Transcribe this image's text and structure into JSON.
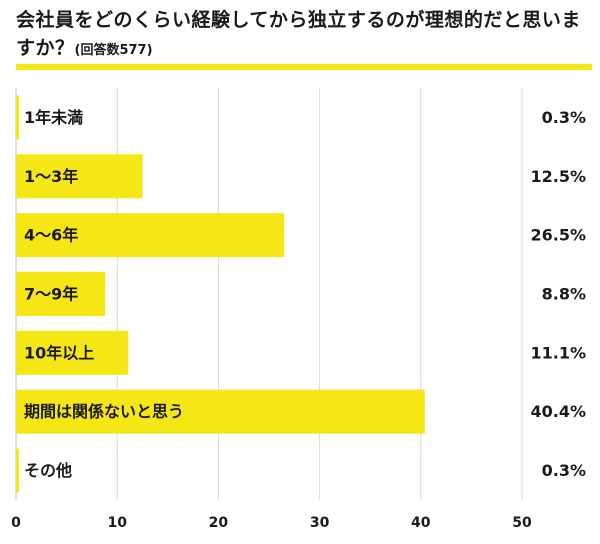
{
  "title": {
    "main": "会社員をどのくらい経験してから独立するのが理想的だと思いますか？",
    "sub": "(回答数577)"
  },
  "colors": {
    "bar": "#f5e716",
    "grid": "#d9d9d9",
    "text": "#1a1a1a"
  },
  "chart_data": {
    "type": "bar",
    "orientation": "horizontal",
    "categories": [
      "1年未満",
      "1〜3年",
      "4〜6年",
      "7〜9年",
      "10年以上",
      "期間は関係ないと思う",
      "その他"
    ],
    "values": [
      0.3,
      12.5,
      26.5,
      8.8,
      11.1,
      40.4,
      0.3
    ],
    "value_labels": [
      "0.3%",
      "12.5%",
      "26.5%",
      "8.8%",
      "11.1%",
      "40.4%",
      "0.3%"
    ],
    "xlim": [
      0,
      50
    ],
    "xticks": [
      "0",
      "10",
      "20",
      "30",
      "40",
      "50"
    ],
    "xtick_values": [
      0,
      10,
      20,
      30,
      40,
      50
    ],
    "grid": true
  }
}
